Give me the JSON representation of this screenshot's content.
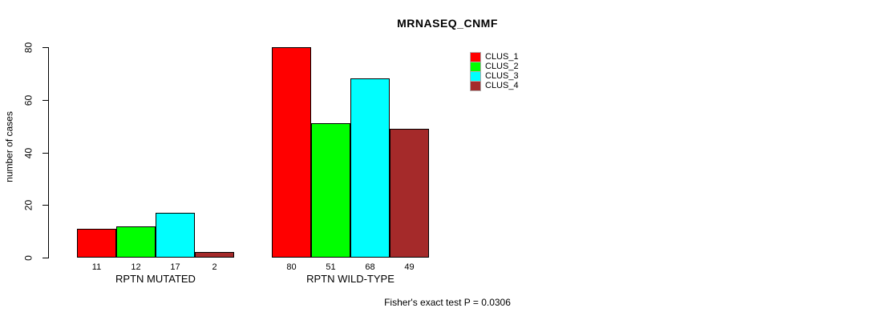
{
  "chart_data": {
    "type": "bar",
    "title": "MRNASEQ_CNMF",
    "ylabel": "number of cases",
    "xlabel": "",
    "categories": [
      "RPTN MUTATED",
      "RPTN WILD-TYPE"
    ],
    "series": [
      {
        "name": "CLUS_1",
        "color": "#FF0000",
        "values": [
          11,
          80
        ]
      },
      {
        "name": "CLUS_2",
        "color": "#00FF00",
        "values": [
          12,
          51
        ]
      },
      {
        "name": "CLUS_3",
        "color": "#00FFFF",
        "values": [
          17,
          68
        ]
      },
      {
        "name": "CLUS_4",
        "color": "#A52A2A",
        "values": [
          2,
          49
        ]
      }
    ],
    "ylim": [
      0,
      80
    ],
    "yticks": [
      0,
      20,
      40,
      60,
      80
    ],
    "grid": false,
    "legend_position": "top-right",
    "bar_value_labels": true,
    "annotation": "Fisher's exact test P = 0.0306"
  }
}
